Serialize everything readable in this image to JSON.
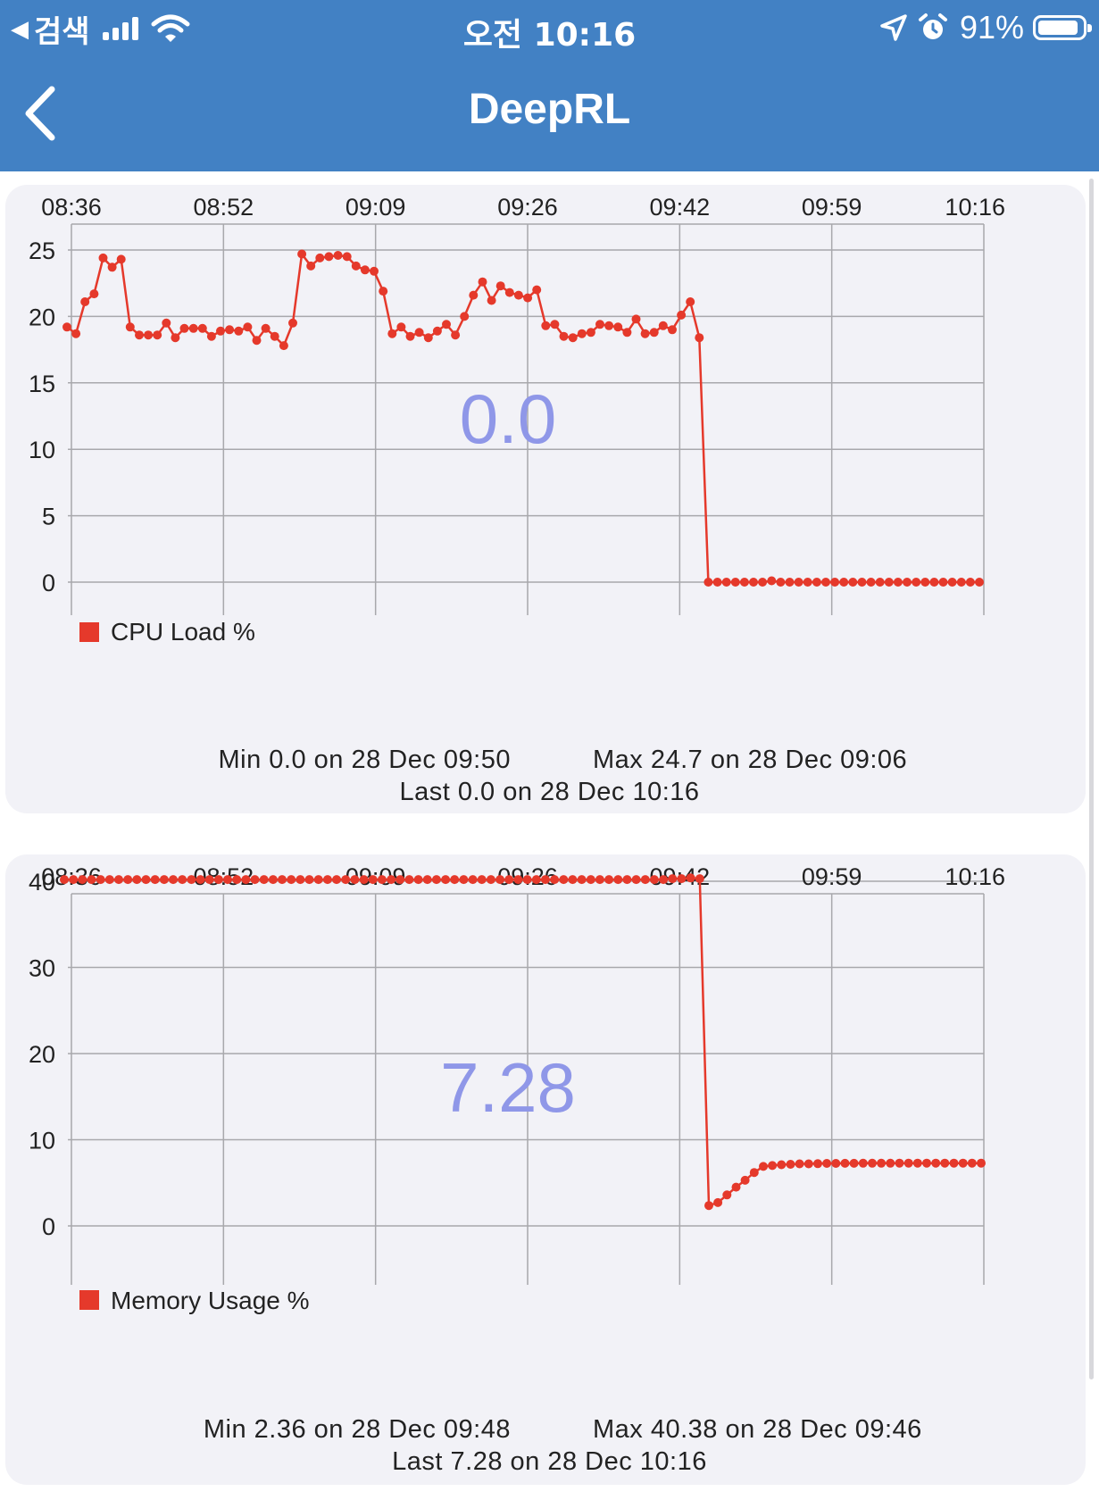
{
  "status_bar": {
    "back_label": "검색",
    "time": "오전 10:16",
    "battery": "91%",
    "battery_level": 0.91
  },
  "nav": {
    "title": "DeepRL"
  },
  "colors": {
    "header": "#4281c4",
    "series": "#e5392b",
    "current_value": "#8f97e8",
    "card_bg": "#f2f2f7"
  },
  "chart_data": [
    {
      "type": "line",
      "x_tick_labels": [
        "08:36",
        "08:52",
        "09:09",
        "09:26",
        "09:42",
        "09:59",
        "10:16"
      ],
      "y_ticks": [
        0,
        5,
        10,
        15,
        20,
        25
      ],
      "ylim": [
        0,
        25
      ],
      "grid": true,
      "legend": {
        "label": "CPU Load %",
        "placement": "bottom-left"
      },
      "current_value": "0.0",
      "series": [
        {
          "name": "CPU Load %",
          "values": [
            19.2,
            18.7,
            21.1,
            21.7,
            24.4,
            23.7,
            24.3,
            19.2,
            18.6,
            18.6,
            18.6,
            19.5,
            18.4,
            19.1,
            19.1,
            19.1,
            18.5,
            18.9,
            19.0,
            18.9,
            19.2,
            18.2,
            19.1,
            18.5,
            17.8,
            19.5,
            24.7,
            23.8,
            24.4,
            24.5,
            24.6,
            24.5,
            23.8,
            23.5,
            23.4,
            21.9,
            18.7,
            19.2,
            18.5,
            18.8,
            18.4,
            18.9,
            19.4,
            18.6,
            20.0,
            21.6,
            22.6,
            21.2,
            22.3,
            21.8,
            21.6,
            21.4,
            22.0,
            19.3,
            19.4,
            18.5,
            18.4,
            18.7,
            18.8,
            19.4,
            19.3,
            19.2,
            18.8,
            19.8,
            18.7,
            18.8,
            19.3,
            19.0,
            20.1,
            21.1,
            18.4,
            0,
            0,
            0,
            0,
            0,
            0,
            0,
            0.1,
            0,
            0,
            0,
            0,
            0,
            0,
            0,
            0,
            0,
            0,
            0,
            0,
            0,
            0,
            0,
            0,
            0,
            0,
            0,
            0,
            0,
            0,
            0
          ]
        }
      ],
      "stats": {
        "min": "Min 0.0 on 28 Dec 09:50",
        "max": "Max 24.7 on 28 Dec 09:06",
        "last": "Last 0.0 on 28 Dec 10:16"
      }
    },
    {
      "type": "line",
      "x_tick_labels": [
        "08:36",
        "08:52",
        "09:09",
        "09:26",
        "09:42",
        "09:59",
        "10:16"
      ],
      "y_ticks": [
        0,
        10,
        20,
        30,
        40
      ],
      "ylim": [
        0,
        40
      ],
      "grid": true,
      "legend": {
        "label": "Memory Usage %",
        "placement": "bottom-left"
      },
      "current_value": "7.28",
      "series": [
        {
          "name": "Memory Usage %",
          "values": [
            40.2,
            40.2,
            40.2,
            40.2,
            40.2,
            40.2,
            40.2,
            40.2,
            40.2,
            40.2,
            40.2,
            40.2,
            40.2,
            40.2,
            40.2,
            40.2,
            40.2,
            40.2,
            40.2,
            40.2,
            40.2,
            40.2,
            40.2,
            40.2,
            40.2,
            40.2,
            40.2,
            40.2,
            40.2,
            40.2,
            40.2,
            40.2,
            40.2,
            40.2,
            40.2,
            40.2,
            40.2,
            40.2,
            40.2,
            40.2,
            40.2,
            40.2,
            40.2,
            40.2,
            40.2,
            40.2,
            40.2,
            40.2,
            40.2,
            40.2,
            40.2,
            40.2,
            40.2,
            40.2,
            40.2,
            40.2,
            40.2,
            40.2,
            40.2,
            40.2,
            40.2,
            40.2,
            40.2,
            40.2,
            40.2,
            40.2,
            40.2,
            40.3,
            40.3,
            40.38,
            40.3,
            2.36,
            2.7,
            3.6,
            4.5,
            5.3,
            6.2,
            6.9,
            7.0,
            7.1,
            7.15,
            7.2,
            7.2,
            7.22,
            7.25,
            7.25,
            7.26,
            7.26,
            7.27,
            7.27,
            7.27,
            7.27,
            7.28,
            7.28,
            7.28,
            7.28,
            7.28,
            7.28,
            7.28,
            7.28,
            7.28,
            7.28
          ]
        }
      ],
      "stats": {
        "min": "Min 2.36 on 28 Dec 09:48",
        "max": "Max 40.38 on 28 Dec 09:46",
        "last": "Last 7.28 on 28 Dec 10:16"
      }
    }
  ]
}
